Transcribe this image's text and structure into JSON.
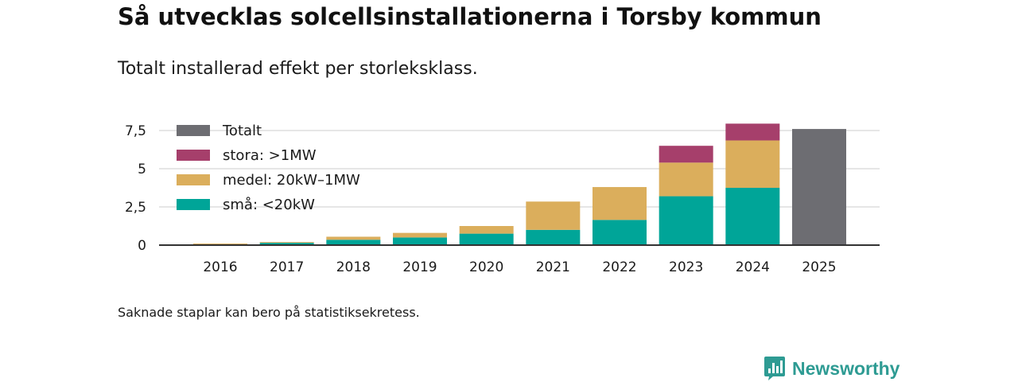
{
  "title": "Så utvecklas solcellsinstallationerna i Torsby kommun",
  "subtitle": "Totalt installerad effekt per storleksklass.",
  "footnote": "Saknade staplar kan bero på statistiksekretess.",
  "brand": {
    "name": "Newsworthy",
    "color": "#2e9b93",
    "icon": "newsworthy-logo-icon"
  },
  "chart_data": {
    "type": "bar",
    "stacked": true,
    "categories": [
      "2016",
      "2017",
      "2018",
      "2019",
      "2020",
      "2021",
      "2022",
      "2023",
      "2024",
      "2025"
    ],
    "series": [
      {
        "name": "små: <20kW",
        "color": "#00a598",
        "values": [
          0.05,
          0.15,
          0.35,
          0.5,
          0.75,
          1.0,
          1.65,
          3.2,
          3.75,
          null
        ]
      },
      {
        "name": "medel: 20kW–1MW",
        "color": "#dbae5c",
        "values": [
          0.05,
          0.05,
          0.2,
          0.3,
          0.5,
          1.85,
          2.15,
          2.2,
          3.1,
          null
        ]
      },
      {
        "name": "stora: >1MW",
        "color": "#a63f6b",
        "values": [
          null,
          null,
          null,
          null,
          null,
          null,
          null,
          1.1,
          1.1,
          null
        ]
      },
      {
        "name": "Totalt",
        "color": "#6d6d72",
        "values": [
          null,
          null,
          null,
          null,
          null,
          null,
          null,
          null,
          null,
          7.6
        ]
      }
    ],
    "legend_order": [
      "Totalt",
      "stora: >1MW",
      "medel: 20kW–1MW",
      "små: <20kW"
    ],
    "y_ticks": [
      0,
      2.5,
      5,
      7.5
    ],
    "y_tick_labels": [
      "0",
      "2,5",
      "5",
      "7,5"
    ],
    "ylim": [
      0,
      8
    ],
    "xlabel": "",
    "ylabel": "",
    "grid": true,
    "legend_position": "top-left"
  }
}
